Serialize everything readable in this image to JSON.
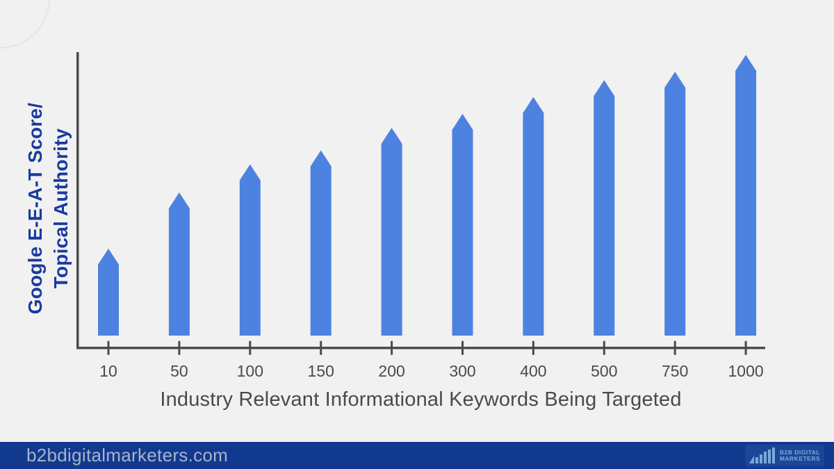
{
  "chart_data": {
    "type": "bar",
    "title": "",
    "xlabel": "Industry Relevant Informational Keywords Being Targeted",
    "ylabel_line1": "Google E-E-A-T Score/",
    "ylabel_line2": "Topical Authority",
    "categories": [
      "10",
      "50",
      "100",
      "150",
      "200",
      "300",
      "400",
      "500",
      "750",
      "1000"
    ],
    "values": [
      31,
      51,
      61,
      66,
      74,
      79,
      85,
      91,
      94,
      100
    ],
    "ylim": [
      0,
      100
    ],
    "grid": false,
    "legend": "none",
    "bar_style": "arrow-top",
    "colors": {
      "bar": "#4d82e0",
      "axis": "#4a4a4a",
      "tick_label": "#4a4a4a",
      "xlabel": "#4a4a4a",
      "ylabel": "#1a3a9e",
      "background": "#f1f1f2"
    }
  },
  "footer": {
    "site_url": "b2bdigitalmarketers.com",
    "background": "#113a8e",
    "text_color": "#a9b2ce",
    "logo": {
      "line1": "B2B DIGITAL",
      "line2": "MARKETERS"
    }
  }
}
